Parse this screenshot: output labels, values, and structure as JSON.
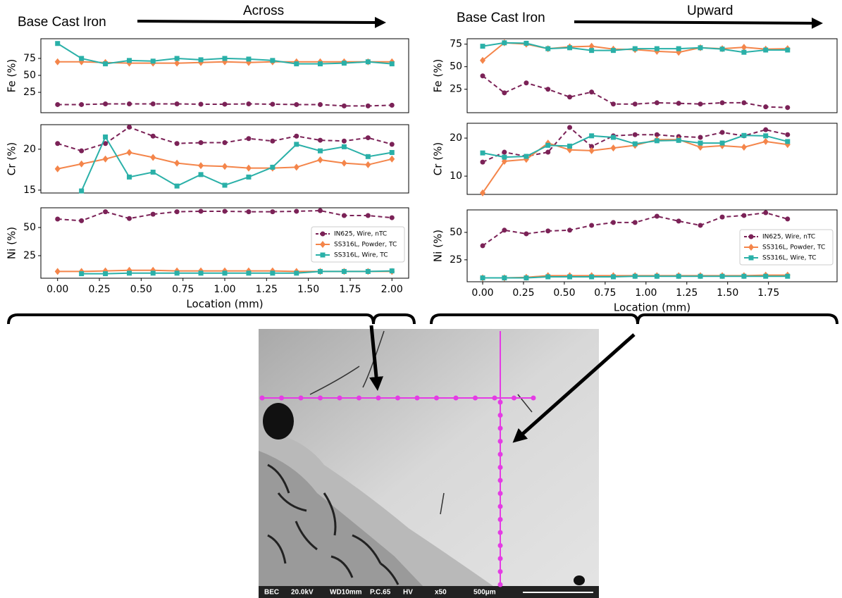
{
  "figure": {
    "left_heading": "Base Cast Iron",
    "left_direction": "Across",
    "right_heading": "Base Cast Iron",
    "right_direction": "Upward",
    "sem_bar": [
      "BEC",
      "20.0kV",
      "WD10mm",
      "P.C.65",
      "HV",
      "x50",
      "500μm"
    ]
  },
  "chart_data": [
    {
      "type": "line",
      "ylabel": "Fe (%)",
      "x": [
        0,
        0.143,
        0.286,
        0.429,
        0.571,
        0.714,
        0.857,
        1.0,
        1.143,
        1.286,
        1.429,
        1.571,
        1.714,
        1.857,
        2.0
      ],
      "xlim": [
        -0.1,
        2.1
      ],
      "ylim": [
        -5,
        104
      ],
      "yticks": [
        25,
        50,
        75
      ],
      "series": [
        {
          "color": "#7b2257",
          "linestyle": "dashed",
          "marker": "circle",
          "values": [
            7,
            7,
            8,
            8,
            8,
            8,
            7.5,
            7.5,
            8,
            7.5,
            7,
            7,
            5,
            5,
            6
          ]
        },
        {
          "color": "#f4854a",
          "linestyle": "solid",
          "marker": "diamond",
          "values": [
            70,
            70,
            69,
            68,
            68,
            68,
            69,
            70,
            69,
            70,
            70,
            70,
            70,
            70,
            70
          ]
        },
        {
          "color": "#2ab0a8",
          "linestyle": "solid",
          "marker": "square",
          "values": [
            97,
            75,
            67,
            72,
            71,
            75,
            73,
            75,
            74,
            72,
            67,
            67,
            68,
            70,
            67
          ]
        }
      ]
    },
    {
      "type": "line",
      "ylabel": "Cr (%)",
      "x": [
        0,
        0.143,
        0.286,
        0.429,
        0.571,
        0.714,
        0.857,
        1.0,
        1.143,
        1.286,
        1.429,
        1.571,
        1.714,
        1.857,
        2.0
      ],
      "xlim": [
        -0.1,
        2.1
      ],
      "ylim": [
        14.65,
        23
      ],
      "yticks": [
        15,
        20
      ],
      "series": [
        {
          "color": "#7b2257",
          "linestyle": "dashed",
          "marker": "circle",
          "values": [
            20.7,
            19.8,
            20.7,
            22.7,
            21.6,
            20.7,
            20.8,
            20.8,
            21.3,
            21.0,
            21.6,
            21.1,
            21.0,
            21.4,
            20.6
          ]
        },
        {
          "color": "#f4854a",
          "linestyle": "solid",
          "marker": "diamond",
          "values": [
            17.6,
            18.2,
            18.8,
            19.6,
            19.0,
            18.3,
            18.0,
            17.9,
            17.7,
            17.7,
            17.8,
            18.7,
            18.3,
            18.1,
            18.8
          ]
        },
        {
          "color": "#2ab0a8",
          "linestyle": "solid",
          "marker": "square",
          "values": [
            null,
            14.9,
            21.5,
            16.6,
            17.2,
            15.5,
            16.9,
            15.6,
            16.6,
            17.8,
            20.6,
            19.8,
            20.3,
            19.1,
            19.6
          ]
        }
      ]
    },
    {
      "type": "line",
      "ylabel": "Ni (%)",
      "xlabel": "Location (mm)",
      "x": [
        0,
        0.143,
        0.286,
        0.429,
        0.571,
        0.714,
        0.857,
        1.0,
        1.143,
        1.286,
        1.429,
        1.571,
        1.714,
        1.857,
        2.0
      ],
      "xlim": [
        -0.1,
        2.1
      ],
      "ylim": [
        5,
        67.5
      ],
      "yticks": [
        25,
        50
      ],
      "xticks": [
        {
          "value": 0,
          "label": "0.00"
        },
        {
          "value": 0.25,
          "label": "0.25"
        },
        {
          "value": 0.5,
          "label": "0.50"
        },
        {
          "value": 0.75,
          "label": "0.75"
        },
        {
          "value": 1,
          "label": "1.00"
        },
        {
          "value": 1.25,
          "label": "1.25"
        },
        {
          "value": 1.5,
          "label": "1.50"
        },
        {
          "value": 1.75,
          "label": "1.75"
        },
        {
          "value": 2,
          "label": "2.00"
        }
      ],
      "legend": "center right",
      "series": [
        {
          "name": "IN625, Wire, nTC",
          "color": "#7b2257",
          "linestyle": "dashed",
          "marker": "circle",
          "values": [
            57.5,
            56,
            64,
            58,
            61.8,
            64,
            64.4,
            64.4,
            64,
            64,
            64.4,
            65,
            60.6,
            60.6,
            58.7
          ]
        },
        {
          "name": "SS316L, Powder, TC",
          "color": "#f4854a",
          "linestyle": "solid",
          "marker": "diamond",
          "values": [
            11,
            11,
            11.5,
            12,
            12,
            11.5,
            11.5,
            11.5,
            11.5,
            11.5,
            11,
            11,
            11,
            11,
            11
          ]
        },
        {
          "name": "SS316L, Wire, TC",
          "color": "#2ab0a8",
          "linestyle": "solid",
          "marker": "square",
          "values": [
            null,
            9,
            9,
            9.5,
            9.5,
            9.5,
            9.5,
            9.5,
            9.5,
            9.5,
            9.5,
            11,
            11,
            11,
            11.5
          ]
        }
      ]
    },
    {
      "type": "line",
      "ylabel": "Fe (%)",
      "x": [
        0,
        0.133,
        0.267,
        0.4,
        0.533,
        0.667,
        0.8,
        0.933,
        1.067,
        1.2,
        1.333,
        1.467,
        1.6,
        1.733,
        1.867
      ],
      "xlim": [
        -0.095,
        2.17
      ],
      "ylim": [
        -1,
        81
      ],
      "yticks": [
        25,
        50,
        75
      ],
      "series": [
        {
          "color": "#7b2257",
          "linestyle": "dashed",
          "marker": "circle",
          "values": [
            39.8,
            21,
            32,
            25,
            16.4,
            21.9,
            8.6,
            8.6,
            10,
            9.4,
            8.6,
            10,
            10,
            5.5,
            4.7
          ]
        },
        {
          "color": "#f4854a",
          "linestyle": "solid",
          "marker": "diamond",
          "values": [
            57,
            76.5,
            75,
            70,
            72,
            72.7,
            69.5,
            69,
            67,
            66,
            71,
            70,
            71.5,
            69.5,
            70
          ]
        },
        {
          "color": "#2ab0a8",
          "linestyle": "solid",
          "marker": "square",
          "values": [
            72.7,
            76.5,
            76,
            70,
            71,
            68,
            68,
            70,
            70,
            70,
            71,
            69.5,
            66,
            68.5,
            68.5
          ]
        }
      ]
    },
    {
      "type": "line",
      "ylabel": "Cr (%)",
      "x": [
        0,
        0.133,
        0.267,
        0.4,
        0.533,
        0.667,
        0.8,
        0.933,
        1.067,
        1.2,
        1.333,
        1.467,
        1.6,
        1.733,
        1.867
      ],
      "xlim": [
        -0.095,
        2.17
      ],
      "ylim": [
        5.2,
        23.9
      ],
      "yticks": [
        10,
        20
      ],
      "series": [
        {
          "color": "#7b2257",
          "linestyle": "dashed",
          "marker": "circle",
          "values": [
            13.7,
            16.3,
            15.2,
            16.3,
            22.8,
            17.8,
            20.6,
            20.9,
            20.9,
            20.4,
            20.2,
            21.5,
            20.6,
            22.2,
            20.9
          ]
        },
        {
          "color": "#f4854a",
          "linestyle": "solid",
          "marker": "diamond",
          "values": [
            5.6,
            13.9,
            14.4,
            18.7,
            16.9,
            16.7,
            17.4,
            18.1,
            19.6,
            19.6,
            17.6,
            18,
            17.6,
            19.1,
            18.3
          ]
        },
        {
          "color": "#2ab0a8",
          "linestyle": "solid",
          "marker": "square",
          "values": [
            16.1,
            15,
            15.2,
            18.1,
            17.9,
            20.6,
            20.2,
            18.5,
            19.3,
            19.4,
            18.7,
            18.7,
            20.7,
            20.6,
            19.1
          ]
        }
      ]
    },
    {
      "type": "line",
      "ylabel": "Ni (%)",
      "xlabel": "Location (mm)",
      "x": [
        0,
        0.133,
        0.267,
        0.4,
        0.533,
        0.667,
        0.8,
        0.933,
        1.067,
        1.2,
        1.333,
        1.467,
        1.6,
        1.733,
        1.867
      ],
      "xlim": [
        -0.095,
        2.17
      ],
      "ylim": [
        5,
        70.5
      ],
      "yticks": [
        25,
        50
      ],
      "xticks": [
        {
          "value": 0,
          "label": "0.00"
        },
        {
          "value": 0.25,
          "label": "0.25"
        },
        {
          "value": 0.5,
          "label": "0.50"
        },
        {
          "value": 0.75,
          "label": "0.75"
        },
        {
          "value": 1,
          "label": "1.00"
        },
        {
          "value": 1.25,
          "label": "1.25"
        },
        {
          "value": 1.5,
          "label": "1.50"
        },
        {
          "value": 1.75,
          "label": "1.75"
        }
      ],
      "legend": "center right",
      "series": [
        {
          "name": "IN625, Wire, nTC",
          "color": "#7b2257",
          "linestyle": "dashed",
          "marker": "circle",
          "values": [
            37.8,
            52,
            48.7,
            51.3,
            52,
            56.4,
            59,
            59,
            64.7,
            60.3,
            56.4,
            64,
            65.4,
            67.9,
            62.2
          ]
        },
        {
          "name": "SS316L, Powder, TC",
          "color": "#f4854a",
          "linestyle": "solid",
          "marker": "diamond",
          "values": [
            8.5,
            8.5,
            9,
            10.5,
            10.5,
            10.5,
            10.5,
            10.5,
            10.5,
            10.5,
            10.5,
            10.5,
            10.5,
            11,
            11
          ]
        },
        {
          "name": "SS316L, Wire, TC",
          "color": "#2ab0a8",
          "linestyle": "solid",
          "marker": "square",
          "values": [
            8.5,
            8.5,
            8.5,
            9.5,
            9.5,
            9.5,
            9.5,
            10,
            10,
            10,
            10,
            10,
            10,
            10,
            10
          ]
        }
      ]
    }
  ]
}
